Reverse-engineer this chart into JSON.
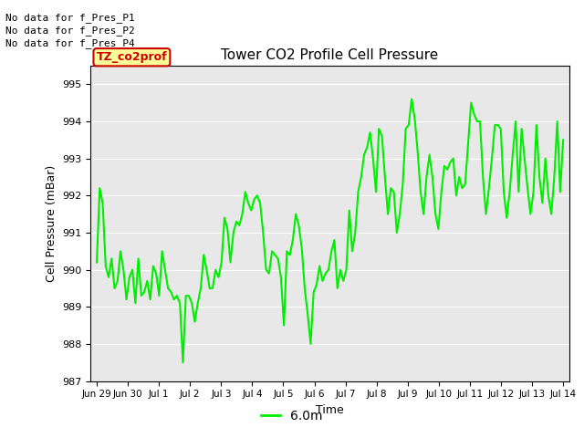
{
  "title": "Tower CO2 Profile Cell Pressure",
  "xlabel": "Time",
  "ylabel": "Cell Pressure (mBar)",
  "ylim": [
    987.0,
    995.5
  ],
  "yticks": [
    987.0,
    988.0,
    989.0,
    990.0,
    991.0,
    992.0,
    993.0,
    994.0,
    995.0
  ],
  "line_color": "#00ee00",
  "line_width": 1.5,
  "bg_color": "#e8e8e8",
  "annotations_outside": [
    "No data for f_Pres_P1",
    "No data for f_Pres_P2",
    "No data for f_Pres_P4"
  ],
  "legend_label": "6.0m",
  "legend_color": "#00ee00",
  "tooltip_text": "TZ_co2prof",
  "tooltip_bg": "#ffff99",
  "tooltip_border": "#cc0000",
  "x_tick_labels": [
    "Jun 29",
    "Jun 30",
    "Jul 1",
    "Jul 2",
    "Jul 3",
    "Jul 4",
    "Jul 5",
    "Jul 6",
    "Jul 7",
    "Jul 8",
    "Jul 9",
    "Jul 10",
    "Jul 11",
    "Jul 12",
    "Jul 13",
    "Jul 14"
  ],
  "y_data": [
    990.2,
    992.2,
    991.8,
    990.1,
    989.8,
    990.3,
    989.5,
    989.7,
    990.5,
    990.0,
    989.2,
    989.8,
    990.0,
    989.1,
    990.3,
    989.3,
    989.4,
    989.7,
    989.2,
    990.1,
    989.9,
    989.3,
    990.5,
    990.0,
    989.5,
    989.4,
    989.2,
    989.3,
    989.1,
    987.5,
    989.3,
    989.3,
    989.1,
    988.6,
    989.1,
    989.5,
    990.4,
    990.0,
    989.5,
    989.5,
    990.0,
    989.8,
    990.2,
    991.4,
    991.1,
    990.2,
    991.0,
    991.3,
    991.2,
    991.5,
    992.1,
    991.8,
    991.6,
    991.9,
    992.0,
    991.8,
    991.0,
    990.0,
    989.9,
    990.5,
    990.4,
    990.3,
    989.8,
    988.5,
    990.5,
    990.4,
    990.8,
    991.5,
    991.2,
    990.6,
    989.5,
    988.8,
    988.0,
    989.4,
    989.6,
    990.1,
    989.7,
    989.9,
    990.0,
    990.5,
    990.8,
    989.5,
    990.0,
    989.7,
    990.0,
    991.6,
    990.5,
    991.0,
    992.1,
    992.5,
    993.1,
    993.3,
    993.7,
    993.0,
    992.1,
    993.8,
    993.6,
    992.5,
    991.5,
    992.2,
    992.1,
    991.0,
    991.5,
    992.3,
    993.8,
    993.9,
    994.6,
    994.1,
    993.2,
    992.1,
    991.5,
    992.5,
    993.1,
    992.5,
    991.5,
    991.1,
    992.1,
    992.8,
    992.7,
    992.9,
    993.0,
    992.0,
    992.5,
    992.2,
    992.3,
    993.4,
    994.5,
    994.2,
    994.0,
    994.0,
    992.5,
    991.5,
    992.2,
    993.0,
    993.9,
    993.9,
    993.8,
    992.1,
    991.4,
    992.1,
    993.1,
    994.0,
    992.1,
    993.8,
    993.0,
    992.2,
    991.5,
    992.1,
    993.9,
    992.5,
    991.8,
    993.0,
    992.0,
    991.5,
    992.5,
    994.0,
    992.1,
    993.5
  ]
}
